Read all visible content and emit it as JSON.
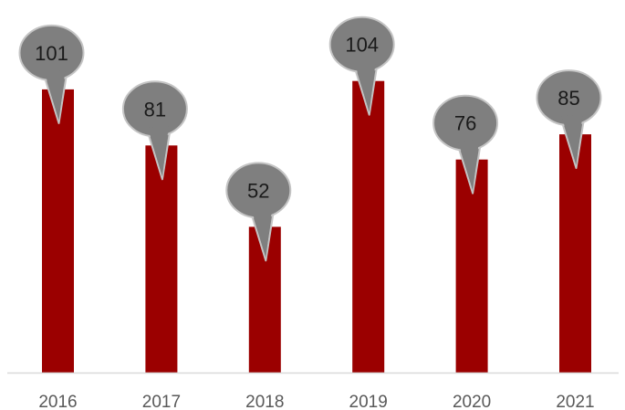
{
  "chart_data": {
    "type": "bar",
    "categories": [
      "2016",
      "2017",
      "2018",
      "2019",
      "2020",
      "2021"
    ],
    "values": [
      101,
      81,
      52,
      104,
      76,
      85
    ],
    "title": "",
    "xlabel": "",
    "ylabel": "",
    "ylim": [
      0,
      104
    ],
    "grid": false,
    "legend": "none",
    "data_labels": "callout",
    "colors": {
      "bar": "#9b0000",
      "callout_fill": "#7f7f7f",
      "callout_stroke": "#c4c4c4",
      "axis": "#d9d9d9",
      "tick_text": "#595959",
      "label_text": "#1a1a1a"
    }
  }
}
